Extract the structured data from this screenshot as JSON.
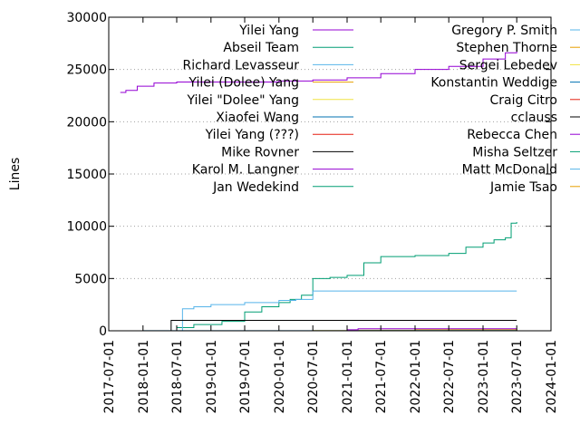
{
  "chart_data": {
    "type": "line",
    "title": "",
    "xlabel": "",
    "ylabel": "Lines",
    "x_type": "date",
    "xlim": [
      "2017-07-01",
      "2024-01-01"
    ],
    "ylim": [
      0,
      30000
    ],
    "xticks": [
      "2017-07-01",
      "2018-01-01",
      "2018-07-01",
      "2019-01-01",
      "2019-07-01",
      "2020-01-01",
      "2020-07-01",
      "2021-01-01",
      "2021-07-01",
      "2022-01-01",
      "2022-07-01",
      "2023-01-01",
      "2023-07-01",
      "2024-01-01"
    ],
    "yticks": [
      0,
      5000,
      10000,
      15000,
      20000,
      25000,
      30000
    ],
    "grid": "horizontal dotted",
    "legend_position": "top, inside, two columns",
    "series": [
      {
        "name": "Yilei Yang",
        "color": "#9400d3",
        "x": [
          "2017-09-01",
          "2017-10-01",
          "2017-12-01",
          "2018-03-01",
          "2018-07-01",
          "2019-01-01",
          "2019-07-01",
          "2020-01-01",
          "2020-07-01",
          "2021-01-01",
          "2021-07-01",
          "2022-01-01",
          "2022-07-01",
          "2023-01-01",
          "2023-05-01",
          "2023-07-01"
        ],
        "y": [
          22800,
          23000,
          23400,
          23700,
          23800,
          23800,
          23800,
          23900,
          24000,
          24200,
          24600,
          25000,
          25300,
          26000,
          26600,
          26700
        ]
      },
      {
        "name": "Abseil Team",
        "color": "#009e73",
        "x": [
          "2018-01-01",
          "2018-07-01",
          "2018-10-01",
          "2019-03-01",
          "2019-07-01",
          "2019-10-01",
          "2020-01-01",
          "2020-03-01",
          "2020-05-01",
          "2020-07-01",
          "2020-10-01",
          "2021-01-01",
          "2021-04-01",
          "2021-07-01",
          "2022-01-01",
          "2022-07-01",
          "2022-10-01",
          "2023-01-01",
          "2023-03-01",
          "2023-05-01",
          "2023-06-01",
          "2023-07-01"
        ],
        "y": [
          0,
          300,
          600,
          900,
          1800,
          2300,
          2700,
          3000,
          3400,
          5000,
          5100,
          5300,
          6500,
          7100,
          7200,
          7400,
          8000,
          8400,
          8700,
          8900,
          10300,
          10400
        ]
      },
      {
        "name": "Richard Levasseur",
        "color": "#56b4e9",
        "x": [
          "2018-07-01",
          "2018-08-01",
          "2018-10-01",
          "2019-01-01",
          "2019-07-01",
          "2020-01-01",
          "2020-04-01",
          "2020-07-01",
          "2021-01-01",
          "2021-07-01",
          "2022-01-01",
          "2022-07-01",
          "2023-01-01",
          "2023-07-01"
        ],
        "y": [
          0,
          2100,
          2300,
          2500,
          2700,
          2900,
          3000,
          3800,
          3800,
          3800,
          3800,
          3800,
          3800,
          3800
        ]
      },
      {
        "name": "Yilei (Dolee) Yang",
        "color": "#e69f00",
        "x": [
          "2017-09-01",
          "2020-07-01",
          "2021-01-01",
          "2022-01-01",
          "2023-07-01"
        ],
        "y": [
          0,
          20,
          50,
          100,
          200
        ]
      },
      {
        "name": "Yilei \"Dolee\" Yang",
        "color": "#f0e442",
        "x": [
          "2017-09-01",
          "2021-01-01",
          "2023-07-01"
        ],
        "y": [
          0,
          10,
          20
        ]
      },
      {
        "name": "Xiaofei Wang",
        "color": "#0072b2",
        "x": [
          "2017-09-01",
          "2018-01-01",
          "2021-01-01",
          "2023-07-01"
        ],
        "y": [
          0,
          10,
          20,
          30
        ]
      },
      {
        "name": "Yilei Yang (???)",
        "color": "#e51e10",
        "x": [
          "2017-09-01",
          "2023-07-01"
        ],
        "y": [
          0,
          10
        ]
      },
      {
        "name": "Mike Rovner",
        "color": "#000000",
        "x": [
          "2017-09-01",
          "2018-05-01",
          "2018-06-01",
          "2023-07-01"
        ],
        "y": [
          0,
          0,
          1000,
          1000
        ]
      },
      {
        "name": "Karol M. Langner",
        "color": "#9400d3",
        "x": [
          "2020-09-01",
          "2021-01-01",
          "2021-03-01",
          "2023-07-01"
        ],
        "y": [
          0,
          100,
          200,
          200
        ]
      },
      {
        "name": "Jan Wedekind",
        "color": "#009e73",
        "x": [
          "2017-09-01",
          "2023-07-01"
        ],
        "y": [
          0,
          30
        ]
      },
      {
        "name": "Gregory P. Smith",
        "color": "#56b4e9",
        "x": [
          "2017-09-01",
          "2023-07-01"
        ],
        "y": [
          0,
          20
        ]
      },
      {
        "name": "Stephen Thorne",
        "color": "#e69f00",
        "x": [
          "2017-09-01",
          "2023-07-01"
        ],
        "y": [
          0,
          20
        ]
      },
      {
        "name": "Sergei Lebedev",
        "color": "#f0e442",
        "x": [
          "2017-09-01",
          "2023-07-01"
        ],
        "y": [
          0,
          15
        ]
      },
      {
        "name": "Konstantin Weddige",
        "color": "#0072b2",
        "x": [
          "2017-09-01",
          "2023-07-01"
        ],
        "y": [
          0,
          10
        ]
      },
      {
        "name": "Craig Citro",
        "color": "#e51e10",
        "x": [
          "2017-09-01",
          "2023-07-01"
        ],
        "y": [
          0,
          10
        ]
      },
      {
        "name": "cclauss",
        "color": "#000000",
        "x": [
          "2017-09-01",
          "2023-07-01"
        ],
        "y": [
          0,
          10
        ]
      },
      {
        "name": "Rebecca Chen",
        "color": "#9400d3",
        "x": [
          "2017-09-01",
          "2023-07-01"
        ],
        "y": [
          0,
          10
        ]
      },
      {
        "name": "Misha Seltzer",
        "color": "#009e73",
        "x": [
          "2017-09-01",
          "2023-07-01"
        ],
        "y": [
          0,
          5
        ]
      },
      {
        "name": "Matt McDonald",
        "color": "#56b4e9",
        "x": [
          "2017-09-01",
          "2023-07-01"
        ],
        "y": [
          0,
          5
        ]
      },
      {
        "name": "Jamie Tsao",
        "color": "#e69f00",
        "x": [
          "2017-09-01",
          "2023-07-01"
        ],
        "y": [
          0,
          5
        ]
      }
    ]
  }
}
